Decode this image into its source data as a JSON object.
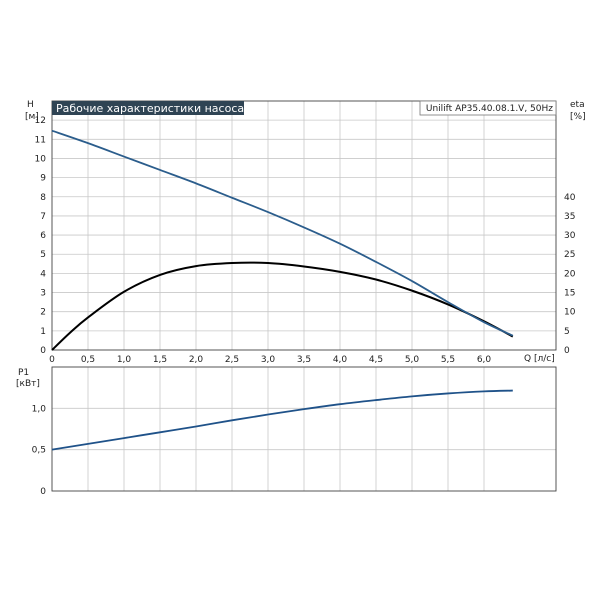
{
  "header": {
    "title": "Рабочие характеристики насоса",
    "model": "Unilift AP35.40.08.1.V, 50Hz"
  },
  "colors": {
    "head_curve": "#2b5d8c",
    "eta_curve": "#000000",
    "power_curve": "#1f5289",
    "title_bg": "#2f4454",
    "grid": "#c8c8c8"
  },
  "chart_data": [
    {
      "type": "line",
      "title": "Рабочие характеристики насоса",
      "xlabel": "Q [л/с]",
      "x_unit_label": "Q [л/с]",
      "xlim": [
        0,
        6.5
      ],
      "x_ticks": [
        "0",
        "0,5",
        "1,0",
        "1,5",
        "2,0",
        "2,5",
        "3,0",
        "3,5",
        "4,0",
        "4,5",
        "5,0",
        "5,5",
        "6,0"
      ],
      "ylabel_left": "H",
      "ylabel_left_unit": "[м]",
      "ylim_left": [
        0,
        13
      ],
      "y_ticks_left": [
        "0",
        "1",
        "2",
        "3",
        "4",
        "5",
        "6",
        "7",
        "8",
        "9",
        "10",
        "11",
        "12"
      ],
      "ylabel_right": "eta",
      "ylabel_right_unit": "[%]",
      "ylim_right": [
        0,
        65
      ],
      "y_ticks_right": [
        "0",
        "5",
        "10",
        "15",
        "20",
        "25",
        "30",
        "35",
        "40"
      ],
      "grid": true,
      "series": [
        {
          "name": "H",
          "axis": "left",
          "x": [
            0,
            0.5,
            1.0,
            1.5,
            2.0,
            2.5,
            3.0,
            3.5,
            4.0,
            4.5,
            5.0,
            5.5,
            6.0,
            6.4
          ],
          "y": [
            11.45,
            10.8,
            10.1,
            9.4,
            8.7,
            7.95,
            7.2,
            6.4,
            5.55,
            4.6,
            3.6,
            2.5,
            1.45,
            0.75
          ]
        },
        {
          "name": "eta",
          "axis": "right",
          "x": [
            0,
            0.25,
            0.5,
            1.0,
            1.5,
            2.0,
            2.5,
            3.0,
            3.5,
            4.0,
            4.5,
            5.0,
            5.5,
            6.0,
            6.4
          ],
          "y": [
            0,
            4.5,
            8.5,
            15.2,
            19.6,
            21.9,
            22.7,
            22.7,
            21.8,
            20.4,
            18.4,
            15.5,
            11.9,
            7.5,
            3.5
          ]
        }
      ]
    },
    {
      "type": "line",
      "xlabel": "",
      "xlim": [
        0,
        6.5
      ],
      "ylabel": "P1",
      "ylabel_unit": "[кВт]",
      "ylim": [
        0,
        1.5
      ],
      "y_ticks": [
        "0",
        "0,5",
        "1,0"
      ],
      "grid": true,
      "series": [
        {
          "name": "P1",
          "x": [
            0,
            0.5,
            1.0,
            1.5,
            2.0,
            2.5,
            3.0,
            3.5,
            4.0,
            4.5,
            5.0,
            5.5,
            6.0,
            6.4
          ],
          "y": [
            0.5,
            0.57,
            0.64,
            0.71,
            0.78,
            0.855,
            0.925,
            0.99,
            1.05,
            1.1,
            1.145,
            1.18,
            1.205,
            1.215
          ]
        }
      ]
    }
  ]
}
